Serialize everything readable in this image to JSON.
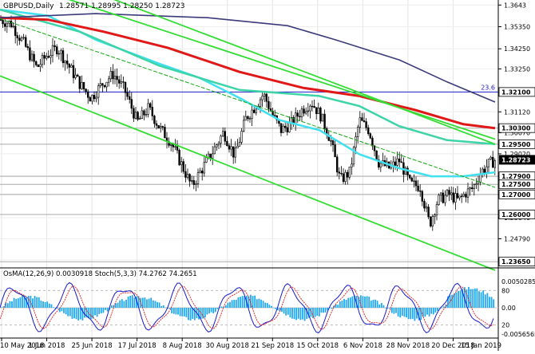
{
  "header": {
    "symbol_text": "GBPUSD,Daily",
    "ohlc_text": "1.28571 1.28995 1.28250 1.28723"
  },
  "oscillator": {
    "header_text": "OsMA(12,26,9) 0.0030918  Stoch(5,3,3) 74.2762 74.2651",
    "axis_labels": [
      {
        "text": "0.0050285",
        "value": 0.0050285
      },
      {
        "text": "80",
        "value": 80
      },
      {
        "text": "0.00",
        "value": 0
      },
      {
        "text": "20",
        "value": 20
      },
      {
        "text": "-0.0056565",
        "value": -0.0056565
      }
    ]
  },
  "chart_data": {
    "type": "candlestick",
    "symbol": "GBPUSD",
    "timeframe": "Daily",
    "last_ohlc": {
      "open": 1.28571,
      "high": 1.28995,
      "low": 1.2825,
      "close": 1.28723
    },
    "current_price": {
      "value": 1.28723,
      "text": "1.28723"
    },
    "x_dates": [
      "10 May 2018",
      "1 Jun 2018",
      "25 Jun 2018",
      "17 Jul 2018",
      "8 Aug 2018",
      "30 Aug 2018",
      "21 Sep 2018",
      "15 Oct 2018",
      "6 Nov 2018",
      "28 Nov 2018",
      "20 Dec 2018",
      "15 Jan 2019"
    ],
    "y_ticks": [
      1.3643,
      1.3535,
      1.3425,
      1.3325,
      1.3111,
      1.3007,
      1.2902,
      1.2792,
      1.2698,
      1.2584,
      1.2479,
      1.2374
    ],
    "y_tick_labels": [
      "1.3643",
      "1.35350",
      "1.34250",
      "1.33250",
      "1.31120",
      "1.30070",
      "1.29020",
      "1.27920",
      "1.26980",
      "1.25840",
      "1.24790",
      "1.23740"
    ],
    "ylim": [
      1.2334,
      1.3668
    ],
    "levels": [
      {
        "value": 1.321,
        "text": "1.32100",
        "color": "#0000ff",
        "note": "23.6"
      },
      {
        "value": 1.303,
        "text": "1.30300",
        "color": "#000000"
      },
      {
        "value": 1.295,
        "text": "1.29500",
        "color": "#000000"
      },
      {
        "value": 1.279,
        "text": "1.27900",
        "color": "#000000"
      },
      {
        "value": 1.275,
        "text": "1.27500",
        "color": "#000000"
      },
      {
        "value": 1.27,
        "text": "1.27000",
        "color": "#000000"
      },
      {
        "value": 1.26,
        "text": "1.26000",
        "color": "#000000"
      },
      {
        "value": 1.2365,
        "text": "1.23650",
        "color": "#000000"
      }
    ],
    "series": [
      {
        "kind": "close",
        "color": "#000000",
        "points": [
          [
            0,
            1.357
          ],
          [
            14,
            1.355
          ],
          [
            30,
            1.345
          ],
          [
            46,
            1.333
          ],
          [
            58,
            1.339
          ],
          [
            72,
            1.343
          ],
          [
            86,
            1.334
          ],
          [
            100,
            1.325
          ],
          [
            114,
            1.318
          ],
          [
            128,
            1.325
          ],
          [
            142,
            1.33
          ],
          [
            156,
            1.322
          ],
          [
            172,
            1.306
          ],
          [
            186,
            1.313
          ],
          [
            200,
            1.303
          ],
          [
            214,
            1.296
          ],
          [
            226,
            1.286
          ],
          [
            240,
            1.274
          ],
          [
            252,
            1.282
          ],
          [
            266,
            1.291
          ],
          [
            280,
            1.301
          ],
          [
            294,
            1.289
          ],
          [
            308,
            1.308
          ],
          [
            318,
            1.313
          ],
          [
            330,
            1.32
          ],
          [
            342,
            1.309
          ],
          [
            352,
            1.302
          ],
          [
            364,
            1.305
          ],
          [
            378,
            1.312
          ],
          [
            390,
            1.316
          ],
          [
            402,
            1.309
          ],
          [
            414,
            1.297
          ],
          [
            426,
            1.277
          ],
          [
            438,
            1.281
          ],
          [
            450,
            1.307
          ],
          [
            462,
            1.302
          ],
          [
            474,
            1.286
          ],
          [
            488,
            1.283
          ],
          [
            500,
            1.287
          ],
          [
            514,
            1.275
          ],
          [
            526,
            1.274
          ],
          [
            538,
            1.255
          ],
          [
            548,
            1.267
          ],
          [
            562,
            1.27
          ],
          [
            574,
            1.267
          ],
          [
            584,
            1.271
          ],
          [
            592,
            1.273
          ],
          [
            602,
            1.281
          ],
          [
            612,
            1.285
          ],
          [
            620,
            1.287
          ]
        ]
      },
      {
        "kind": "ma_fast",
        "color": "#40e0f0",
        "points": [
          [
            0,
            1.362
          ],
          [
            60,
            1.359
          ],
          [
            120,
            1.347
          ],
          [
            200,
            1.335
          ],
          [
            250,
            1.328
          ],
          [
            300,
            1.318
          ],
          [
            350,
            1.307
          ],
          [
            400,
            1.302
          ],
          [
            450,
            1.29
          ],
          [
            500,
            1.283
          ],
          [
            540,
            1.279
          ],
          [
            580,
            1.279
          ],
          [
            620,
            1.281
          ]
        ]
      },
      {
        "kind": "ma_mid",
        "color": "#3dd4a8",
        "points": [
          [
            0,
            1.362
          ],
          [
            100,
            1.351
          ],
          [
            200,
            1.334
          ],
          [
            300,
            1.322
          ],
          [
            400,
            1.319
          ],
          [
            450,
            1.314
          ],
          [
            500,
            1.304
          ],
          [
            560,
            1.297
          ],
          [
            620,
            1.295
          ]
        ]
      },
      {
        "kind": "ma_slow",
        "color": "#e01818",
        "points": [
          [
            0,
            1.358
          ],
          [
            60,
            1.357
          ],
          [
            130,
            1.351
          ],
          [
            210,
            1.343
          ],
          [
            300,
            1.331
          ],
          [
            380,
            1.323
          ],
          [
            450,
            1.319
          ],
          [
            520,
            1.312
          ],
          [
            580,
            1.305
          ],
          [
            620,
            1.303
          ]
        ]
      },
      {
        "kind": "ma_long",
        "color": "#3a3a7a",
        "points": [
          [
            0,
            1.358
          ],
          [
            120,
            1.36
          ],
          [
            260,
            1.358
          ],
          [
            360,
            1.354
          ],
          [
            420,
            1.347
          ],
          [
            500,
            1.337
          ],
          [
            560,
            1.326
          ],
          [
            620,
            1.316
          ]
        ]
      },
      {
        "kind": "channel_upper",
        "color": "#33dd33",
        "points": [
          [
            60,
            1.3705
          ],
          [
            620,
            1.2975
          ]
        ]
      },
      {
        "kind": "channel_mid",
        "color": "#11aa11",
        "points": [
          [
            0,
            1.3575
          ],
          [
            620,
            1.2735
          ]
        ]
      },
      {
        "kind": "channel_lower",
        "color": "#33dd33",
        "points": [
          [
            0,
            1.329
          ],
          [
            620,
            1.2322
          ]
        ]
      },
      {
        "kind": "channel_upper2",
        "color": "#33dd33",
        "points": [
          [
            120,
            1.3705
          ],
          [
            620,
            1.295
          ]
        ]
      }
    ]
  }
}
